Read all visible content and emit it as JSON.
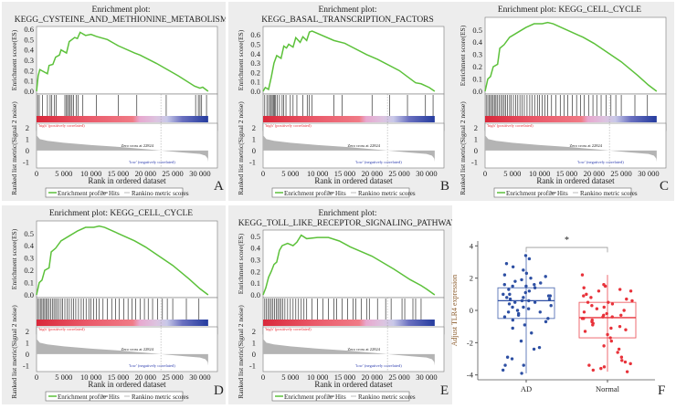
{
  "chart_data": [
    {
      "type": "line",
      "panel_label": "A",
      "title_lines": [
        "Enrichment plot:",
        "KEGG_CYSTEINE_AND_METHIONINE_METABOLISM"
      ],
      "ylabel_es": "Enrichment score(ES)",
      "ylabel_metric": "Ranked list metric(Signal 2 noise)",
      "xlabel": "Rank in ordered dataset",
      "x_ticks": [
        "0",
        "5 000",
        "10 000",
        "15 000",
        "20 000",
        "25 000",
        "30 000"
      ],
      "es_ticks": [
        "0.0",
        "0.1",
        "0.2",
        "0.3",
        "0.4",
        "0.5",
        "0.6"
      ],
      "es_max": 0.6,
      "metric_ticks": [
        "2",
        "1",
        "0",
        "-1"
      ],
      "es": [
        [
          0,
          0
        ],
        [
          300,
          0.15
        ],
        [
          600,
          0.21
        ],
        [
          2000,
          0.17
        ],
        [
          2300,
          0.25
        ],
        [
          3000,
          0.26
        ],
        [
          3500,
          0.33
        ],
        [
          4200,
          0.35
        ],
        [
          4500,
          0.4
        ],
        [
          5500,
          0.37
        ],
        [
          6000,
          0.48
        ],
        [
          7000,
          0.52
        ],
        [
          7500,
          0.51
        ],
        [
          8000,
          0.57
        ],
        [
          9000,
          0.54
        ],
        [
          10000,
          0.55
        ],
        [
          11000,
          0.53
        ],
        [
          13000,
          0.5
        ],
        [
          15000,
          0.44
        ],
        [
          18000,
          0.37
        ],
        [
          19000,
          0.35
        ],
        [
          22000,
          0.27
        ],
        [
          26000,
          0.15
        ],
        [
          29000,
          0.05
        ],
        [
          30000,
          0.03
        ],
        [
          30500,
          0.04
        ],
        [
          31500,
          0
        ]
      ],
      "hits": [
        200,
        500,
        1100,
        2000,
        2500,
        2800,
        3300,
        3600,
        5200,
        5500,
        5700,
        6000,
        6200,
        6500,
        6800,
        7300,
        7600,
        8500,
        11000,
        15000,
        18400,
        23800,
        29200,
        29700,
        30000,
        30300,
        31200
      ],
      "zero_cross_text": "Zero cross at 22824",
      "high_text": "'high' (positively correlated)",
      "low_text": "'low' (negatively correlated)",
      "legend": [
        "Enrichment profile",
        "Hits",
        "Rankino metric scores"
      ]
    },
    {
      "type": "line",
      "panel_label": "B",
      "title_lines": [
        "Enrichment plot:",
        "KEGG_BASAL_TRANSCRIPTION_FACTORS"
      ],
      "ylabel_es": "Enrichment score(ES)",
      "ylabel_metric": "Ranked list metric(Signal 2 noise)",
      "xlabel": "Rank in ordered dataset",
      "x_ticks": [
        "0",
        "5 000",
        "10 000",
        "15 000",
        "20 000",
        "25 000",
        "30 000"
      ],
      "es_ticks": [
        "0.0",
        "0.1",
        "0.2",
        "0.3",
        "0.4",
        "0.5",
        "0.6"
      ],
      "es_max": 0.66,
      "metric_ticks": [
        "2",
        "1",
        "0",
        "-1"
      ],
      "es": [
        [
          0,
          0
        ],
        [
          400,
          0.04
        ],
        [
          1000,
          0.02
        ],
        [
          1500,
          0.15
        ],
        [
          2000,
          0.3
        ],
        [
          2500,
          0.38
        ],
        [
          3300,
          0.35
        ],
        [
          3800,
          0.48
        ],
        [
          4300,
          0.46
        ],
        [
          4700,
          0.5
        ],
        [
          5500,
          0.47
        ],
        [
          6000,
          0.57
        ],
        [
          6800,
          0.52
        ],
        [
          7300,
          0.58
        ],
        [
          8000,
          0.54
        ],
        [
          8500,
          0.63
        ],
        [
          9000,
          0.64
        ],
        [
          13000,
          0.54
        ],
        [
          15000,
          0.51
        ],
        [
          19000,
          0.39
        ],
        [
          21000,
          0.34
        ],
        [
          25000,
          0.22
        ],
        [
          28000,
          0.09
        ],
        [
          29000,
          0.08
        ],
        [
          30500,
          0.04
        ],
        [
          31500,
          0
        ]
      ],
      "hits": [
        300,
        700,
        1000,
        1300,
        1500,
        1700,
        1900,
        2100,
        2300,
        2600,
        3000,
        3500,
        3800,
        4200,
        5000,
        5500,
        6200,
        7300,
        8100,
        8500,
        9000,
        13000,
        14500,
        20000,
        23200,
        26500,
        29800,
        31200
      ],
      "zero_cross_text": "Zero cross at 22824",
      "high_text": "'high' (positively correlated)",
      "low_text": "'low' (negatively correlated)",
      "legend": [
        "Enrichment profile",
        "Hits",
        "Rankino metric scores"
      ]
    },
    {
      "type": "line",
      "panel_label": "C",
      "title_lines": [
        "Enrichment plot: KEGG_CELL_CYCLE"
      ],
      "ylabel_es": "Enrichment score(ES)",
      "ylabel_metric": "Ranked list metric(Signal 2 noise)",
      "xlabel": "Rank in ordered dataset",
      "x_ticks": [
        "0",
        "5 000",
        "10 000",
        "15 000",
        "20 000",
        "25 000",
        "30 000"
      ],
      "es_ticks": [
        "0.0",
        "0.1",
        "0.2",
        "0.3",
        "0.4",
        "0.5"
      ],
      "es_max": 0.58,
      "metric_ticks": [
        "2",
        "1",
        "0",
        "-1"
      ],
      "es": [
        [
          0,
          0
        ],
        [
          500,
          0.1
        ],
        [
          1000,
          0.12
        ],
        [
          1500,
          0.2
        ],
        [
          2300,
          0.22
        ],
        [
          2700,
          0.35
        ],
        [
          3500,
          0.38
        ],
        [
          4500,
          0.44
        ],
        [
          6000,
          0.48
        ],
        [
          7500,
          0.52
        ],
        [
          9000,
          0.55
        ],
        [
          10500,
          0.55
        ],
        [
          11500,
          0.56
        ],
        [
          12500,
          0.55
        ],
        [
          15000,
          0.5
        ],
        [
          18000,
          0.44
        ],
        [
          20000,
          0.39
        ],
        [
          25000,
          0.24
        ],
        [
          28000,
          0.13
        ],
        [
          30000,
          0.05
        ],
        [
          31500,
          0
        ]
      ],
      "hits": [
        200,
        500,
        800,
        1000,
        1300,
        1500,
        1800,
        2000,
        2300,
        2600,
        2900,
        3200,
        3500,
        3800,
        4100,
        4500,
        4800,
        5200,
        5600,
        6000,
        6400,
        6800,
        7200,
        7700,
        8200,
        8600,
        9100,
        9600,
        10000,
        10500,
        11000,
        11500,
        12200,
        13000,
        13800,
        14500,
        15200,
        16000,
        16800,
        17500,
        18200,
        19000,
        19800,
        20500,
        21300,
        22200,
        23100,
        24000,
        25000,
        27500,
        29800
      ],
      "zero_cross_text": "Zero cross at 22824",
      "high_text": "'high' (positively correlated)",
      "low_text": "'low' (negatively correlated)",
      "legend": [
        "Enrichment profile",
        "Hits",
        "Rankino metric scores"
      ]
    },
    {
      "type": "line",
      "panel_label": "D",
      "title_lines": [
        "Enrichment plot: KEGG_CELL_CYCLE"
      ],
      "ylabel_es": "Enrichment score(ES)",
      "ylabel_metric": "Ranked list metric(Signal 2 noise)",
      "xlabel": "Rank in ordered dataset",
      "x_ticks": [
        "0",
        "5 000",
        "10 000",
        "15 000",
        "20 000",
        "25 000",
        "30 000"
      ],
      "es_ticks": [
        "0.0",
        "0.1",
        "0.2",
        "0.3",
        "0.4",
        "0.5"
      ],
      "es_max": 0.58,
      "metric_ticks": [
        "2",
        "1",
        "0",
        "-1"
      ],
      "es": [
        [
          0,
          0
        ],
        [
          500,
          0.1
        ],
        [
          1000,
          0.12
        ],
        [
          1500,
          0.2
        ],
        [
          2300,
          0.22
        ],
        [
          2700,
          0.35
        ],
        [
          3500,
          0.38
        ],
        [
          4500,
          0.44
        ],
        [
          6000,
          0.48
        ],
        [
          7500,
          0.52
        ],
        [
          9000,
          0.55
        ],
        [
          10500,
          0.55
        ],
        [
          11500,
          0.56
        ],
        [
          12500,
          0.55
        ],
        [
          15000,
          0.5
        ],
        [
          18000,
          0.44
        ],
        [
          20000,
          0.39
        ],
        [
          25000,
          0.24
        ],
        [
          28000,
          0.13
        ],
        [
          30000,
          0.05
        ],
        [
          31500,
          0
        ]
      ],
      "hits": [
        200,
        500,
        800,
        1000,
        1300,
        1500,
        1800,
        2000,
        2300,
        2600,
        2900,
        3200,
        3500,
        3800,
        4100,
        4500,
        4800,
        5200,
        5600,
        6000,
        6400,
        6800,
        7200,
        7700,
        8200,
        8600,
        9100,
        9600,
        10000,
        10500,
        11000,
        11500,
        12200,
        13000,
        13800,
        14500,
        15200,
        16000,
        16800,
        17500,
        18200,
        19000,
        19800,
        20500,
        21300,
        22200,
        23100,
        24000,
        25000,
        27500,
        29800
      ],
      "zero_cross_text": "Zero cross at 22824",
      "high_text": "'high' (positively correlated)",
      "low_text": "'low' (negatively correlated)",
      "legend": [
        "Enrichment profile",
        "Hits",
        "Rankino metric scores"
      ]
    },
    {
      "type": "line",
      "panel_label": "E",
      "title_lines": [
        "Enrichment plot:",
        "KEGG_TOLL_LIKE_RECEPTOR_SIGNALING_PATHWAY"
      ],
      "ylabel_es": "Enrichment score(ES)",
      "ylabel_metric": "Ranked list metric(Signal 2 noise)",
      "xlabel": "Rank in ordered dataset",
      "x_ticks": [
        "0",
        "5 000",
        "10 000",
        "15 000",
        "20 000",
        "25 000",
        "30 000"
      ],
      "es_ticks": [
        "0.0",
        "0.1",
        "0.2",
        "0.3",
        "0.4",
        "0.5"
      ],
      "es_max": 0.53,
      "metric_ticks": [
        "2",
        "1",
        "0",
        "-1"
      ],
      "es": [
        [
          0,
          0
        ],
        [
          500,
          0.06
        ],
        [
          1000,
          0.15
        ],
        [
          1500,
          0.2
        ],
        [
          2000,
          0.26
        ],
        [
          2500,
          0.28
        ],
        [
          3000,
          0.38
        ],
        [
          3500,
          0.42
        ],
        [
          4500,
          0.44
        ],
        [
          5500,
          0.42
        ],
        [
          6200,
          0.45
        ],
        [
          7000,
          0.51
        ],
        [
          8000,
          0.48
        ],
        [
          10000,
          0.49
        ],
        [
          12000,
          0.49
        ],
        [
          14000,
          0.46
        ],
        [
          16000,
          0.41
        ],
        [
          20000,
          0.33
        ],
        [
          24000,
          0.22
        ],
        [
          27000,
          0.13
        ],
        [
          29000,
          0.08
        ],
        [
          30000,
          0.05
        ],
        [
          31500,
          0
        ]
      ],
      "hits": [
        300,
        600,
        900,
        1200,
        1500,
        1800,
        2100,
        2400,
        2700,
        3000,
        3300,
        3600,
        4000,
        4500,
        5000,
        5500,
        6000,
        6500,
        7000,
        7500,
        8000,
        9000,
        10000,
        11000,
        12000,
        13000,
        13500,
        14500,
        15500,
        16500,
        17000,
        18000,
        19000,
        19500,
        21000,
        22500,
        23500,
        25500,
        26000,
        27500,
        28000,
        29000
      ],
      "zero_cross_text": "Zero cross at 22824",
      "high_text": "'high' (positively correlated)",
      "low_text": "'low' (negatively correlated)",
      "legend": [
        "Enrichment profile",
        "Hits",
        "Rankino metric scores"
      ]
    },
    {
      "type": "scatter",
      "panel_label": "F",
      "ylabel": "Adjust TLR4 expression",
      "categories": [
        "AD",
        "Normal"
      ],
      "colors": [
        "#2d4fa3",
        "#e8323a"
      ],
      "ylim": [
        -4.3,
        4.3
      ],
      "y_ticks": [
        -4,
        -2,
        0,
        2,
        4
      ],
      "significance": "*",
      "boxes": [
        {
          "name": "AD",
          "whisker_low": -3.9,
          "q1": -0.5,
          "median": 0.6,
          "q3": 1.4,
          "whisker_high": 3.4
        },
        {
          "name": "Normal",
          "whisker_low": -3.8,
          "q1": -1.7,
          "median": -0.45,
          "q3": 0.5,
          "whisker_high": 2.2
        }
      ],
      "points": [
        [
          3.4,
          3.2,
          2.9,
          2.7,
          2.5,
          2.3,
          2.2,
          2.1,
          2.0,
          1.9,
          1.8,
          1.7,
          1.6,
          1.6,
          1.5,
          1.5,
          1.4,
          1.3,
          1.2,
          1.1,
          1.0,
          1.0,
          0.9,
          0.9,
          0.8,
          0.8,
          0.7,
          0.7,
          0.6,
          0.6,
          0.5,
          0.5,
          0.4,
          0.3,
          0.2,
          0.2,
          0.1,
          0.0,
          -0.1,
          -0.1,
          -0.2,
          -0.3,
          -0.4,
          -0.5,
          -0.6,
          -0.7,
          -0.9,
          -1.1,
          -1.4,
          -1.9,
          -2.3,
          -2.4,
          -2.9,
          -3.0,
          -3.4,
          -3.4,
          -3.7,
          -3.9
        ],
        [
          2.2,
          1.6,
          1.5,
          1.4,
          1.3,
          1.2,
          1.2,
          1.0,
          0.9,
          0.8,
          0.7,
          0.6,
          0.5,
          0.5,
          0.4,
          0.3,
          0.2,
          0.1,
          0.0,
          -0.1,
          -0.2,
          -0.3,
          -0.3,
          -0.4,
          -0.4,
          -0.5,
          -0.5,
          -0.6,
          -0.7,
          -0.8,
          -0.9,
          -1.0,
          -1.1,
          -1.2,
          -1.3,
          -1.5,
          -1.7,
          -1.9,
          -2.2,
          -2.4,
          -2.6,
          -2.9,
          -3.1,
          -3.2,
          -3.3,
          -3.4,
          -3.5,
          -3.6,
          -3.7,
          -3.8
        ]
      ]
    }
  ]
}
